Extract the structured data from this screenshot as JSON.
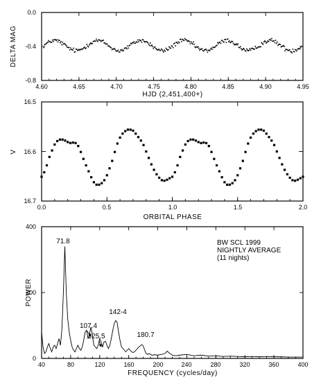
{
  "chart_data": [
    {
      "type": "scatter",
      "xlabel": "HJD (2,451,400+)",
      "ylabel": "DELTA MAG",
      "xlim": [
        4.6,
        4.95
      ],
      "ylim": [
        -0.8,
        0.0
      ],
      "y_inverted": true,
      "xticks": [
        "4.60",
        "4.65",
        "4.70",
        "4.75",
        "4.80",
        "4.85",
        "4.90",
        "4.95"
      ],
      "yticks": [
        "0.0",
        "-0.4",
        "-0.8"
      ],
      "series": [
        {
          "x_range": [
            4.603,
            4.948
          ],
          "mean": -0.39,
          "amplitude": 0.06,
          "scatter": 0.025,
          "period_days": 0.0577,
          "n_points": 330
        }
      ]
    },
    {
      "type": "scatter",
      "xlabel": "ORBITAL PHASE",
      "ylabel": "V",
      "xlim": [
        0.0,
        2.0
      ],
      "ylim": [
        16.7,
        16.5
      ],
      "y_inverted": true,
      "xticks": [
        "0.0",
        "0.5",
        "1.0",
        "1.5",
        "2.0"
      ],
      "yticks": [
        "16.5",
        "16.6",
        "16.7"
      ],
      "series": [
        {
          "phase": [
            0.0,
            0.02,
            0.04,
            0.06,
            0.08,
            0.1,
            0.12,
            0.14,
            0.16,
            0.18,
            0.2,
            0.22,
            0.24,
            0.26,
            0.28,
            0.3,
            0.32,
            0.34,
            0.36,
            0.38,
            0.4,
            0.42,
            0.44,
            0.46,
            0.48,
            0.5,
            0.52,
            0.54,
            0.56,
            0.58,
            0.6,
            0.62,
            0.64,
            0.66,
            0.68,
            0.7,
            0.72,
            0.74,
            0.76,
            0.78,
            0.8,
            0.82,
            0.84,
            0.86,
            0.88,
            0.9,
            0.92,
            0.94,
            0.96,
            0.98
          ],
          "V": [
            16.651,
            16.642,
            16.628,
            16.611,
            16.598,
            16.586,
            16.579,
            16.576,
            16.576,
            16.578,
            16.581,
            16.583,
            16.582,
            16.583,
            16.589,
            16.601,
            16.615,
            16.628,
            16.64,
            16.652,
            16.662,
            16.667,
            16.667,
            16.664,
            16.658,
            16.648,
            16.634,
            16.619,
            16.601,
            16.584,
            16.572,
            16.564,
            16.559,
            16.556,
            16.556,
            16.558,
            16.564,
            16.571,
            16.578,
            16.587,
            16.6,
            16.613,
            16.626,
            16.637,
            16.646,
            16.653,
            16.658,
            16.659,
            16.657,
            16.654
          ],
          "repeated_over_phase": [
            0.0,
            2.0
          ]
        }
      ]
    },
    {
      "type": "line",
      "xlabel": "FREQUENCY (cycles/day)",
      "ylabel": "POWER",
      "xlim": [
        40,
        400
      ],
      "ylim": [
        0,
        400
      ],
      "xticks": [
        "40",
        "80",
        "120",
        "160",
        "200",
        "240",
        "280",
        "320",
        "360",
        "400"
      ],
      "yticks": [
        "0",
        "200",
        "400"
      ],
      "series": [
        {
          "frequency": [
            40,
            42,
            44,
            46,
            48,
            50,
            52,
            54,
            56,
            58,
            60,
            62,
            64,
            66,
            68,
            70,
            72,
            74,
            76,
            78,
            80,
            82,
            84,
            86,
            88,
            90,
            92,
            94,
            96,
            98,
            100,
            102,
            104,
            106,
            108,
            110,
            112,
            114,
            116,
            118,
            120,
            122,
            124,
            126,
            128,
            130,
            132,
            134,
            136,
            138,
            140,
            142,
            144,
            146,
            148,
            150,
            152,
            154,
            156,
            158,
            160,
            162,
            164,
            166,
            168,
            170,
            172,
            174,
            176,
            178,
            180,
            182,
            184,
            186,
            188,
            190,
            192,
            194,
            196,
            198,
            200,
            205,
            210,
            213,
            216,
            220,
            225,
            230,
            240,
            250,
            260,
            270,
            280,
            290,
            300,
            310,
            320,
            330,
            340,
            350,
            360,
            370,
            380,
            390,
            400
          ],
          "power": [
            80,
            35,
            15,
            20,
            35,
            45,
            30,
            20,
            35,
            40,
            30,
            45,
            60,
            40,
            90,
            200,
            340,
            200,
            120,
            80,
            55,
            35,
            25,
            20,
            30,
            40,
            30,
            25,
            35,
            55,
            80,
            85,
            60,
            75,
            95,
            70,
            40,
            35,
            30,
            40,
            60,
            50,
            35,
            50,
            52,
            40,
            30,
            40,
            60,
            85,
            105,
            115,
            110,
            80,
            55,
            35,
            30,
            25,
            20,
            25,
            30,
            25,
            20,
            18,
            20,
            25,
            30,
            35,
            38,
            42,
            38,
            25,
            15,
            12,
            15,
            12,
            10,
            10,
            12,
            10,
            10,
            12,
            15,
            22,
            16,
            10,
            8,
            10,
            12,
            8,
            10,
            7,
            8,
            6,
            7,
            6,
            5,
            6,
            5,
            6,
            5,
            5,
            4,
            4,
            4
          ]
        }
      ],
      "annotations": [
        {
          "text": "71.8",
          "x": 71.8,
          "y": 340
        },
        {
          "text": "107.4",
          "x": 107.4,
          "y": 100,
          "arrow": true
        },
        {
          "text": "125.5",
          "x": 125.5,
          "y": 55,
          "arrow": true
        },
        {
          "text": "142-4",
          "x": 142.4,
          "y": 115
        },
        {
          "text": "180.7",
          "x": 180.7,
          "y": 42
        }
      ],
      "legend_text": [
        "BW SCL 1999",
        "NIGHTLY AVERAGE",
        "(11 nights)"
      ]
    }
  ]
}
